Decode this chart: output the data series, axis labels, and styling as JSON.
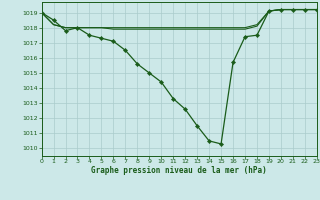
{
  "title": "Graphe pression niveau de la mer (hPa)",
  "bg_color": "#cce8e8",
  "grid_color": "#aacccc",
  "line_color": "#1a5c1a",
  "xlim": [
    0,
    23
  ],
  "ylim": [
    1009.5,
    1019.7
  ],
  "xticks": [
    0,
    1,
    2,
    3,
    4,
    5,
    6,
    7,
    8,
    9,
    10,
    11,
    12,
    13,
    14,
    15,
    16,
    17,
    18,
    19,
    20,
    21,
    22,
    23
  ],
  "yticks": [
    1010,
    1011,
    1012,
    1013,
    1014,
    1015,
    1016,
    1017,
    1018,
    1019
  ],
  "main_x": [
    0,
    1,
    2,
    3,
    4,
    5,
    6,
    7,
    8,
    9,
    10,
    11,
    12,
    13,
    14,
    15,
    16,
    17,
    18,
    19,
    20,
    21,
    22,
    23
  ],
  "main_y": [
    1019.0,
    1018.5,
    1017.8,
    1018.0,
    1017.5,
    1017.3,
    1017.1,
    1016.5,
    1015.6,
    1015.0,
    1014.4,
    1013.3,
    1012.6,
    1011.5,
    1010.5,
    1010.3,
    1015.7,
    1017.4,
    1017.5,
    1019.1,
    1019.2,
    1019.2,
    1019.2,
    1019.2
  ],
  "flat1_x": [
    0,
    1,
    2,
    3,
    4,
    5,
    6,
    7,
    8,
    9,
    10,
    11,
    12,
    13,
    14,
    15,
    16,
    17,
    18,
    19,
    20,
    21,
    22,
    23
  ],
  "flat1_y": [
    1019.0,
    1018.2,
    1018.0,
    1018.0,
    1018.0,
    1018.0,
    1018.0,
    1018.0,
    1018.0,
    1018.0,
    1018.0,
    1018.0,
    1018.0,
    1018.0,
    1018.0,
    1018.0,
    1018.0,
    1018.0,
    1018.2,
    1019.1,
    1019.2,
    1019.2,
    1019.2,
    1019.2
  ],
  "flat2_x": [
    0,
    1,
    2,
    3,
    4,
    5,
    6,
    7,
    8,
    9,
    10,
    11,
    12,
    13,
    14,
    15,
    16,
    17,
    18,
    19,
    20,
    21,
    22,
    23
  ],
  "flat2_y": [
    1019.0,
    1018.2,
    1018.0,
    1018.0,
    1018.0,
    1018.0,
    1017.9,
    1017.9,
    1017.9,
    1017.9,
    1017.9,
    1017.9,
    1017.9,
    1017.9,
    1017.9,
    1017.9,
    1017.9,
    1017.9,
    1018.1,
    1019.1,
    1019.2,
    1019.2,
    1019.2,
    1019.2
  ],
  "figw": 3.2,
  "figh": 2.0,
  "dpi": 100
}
